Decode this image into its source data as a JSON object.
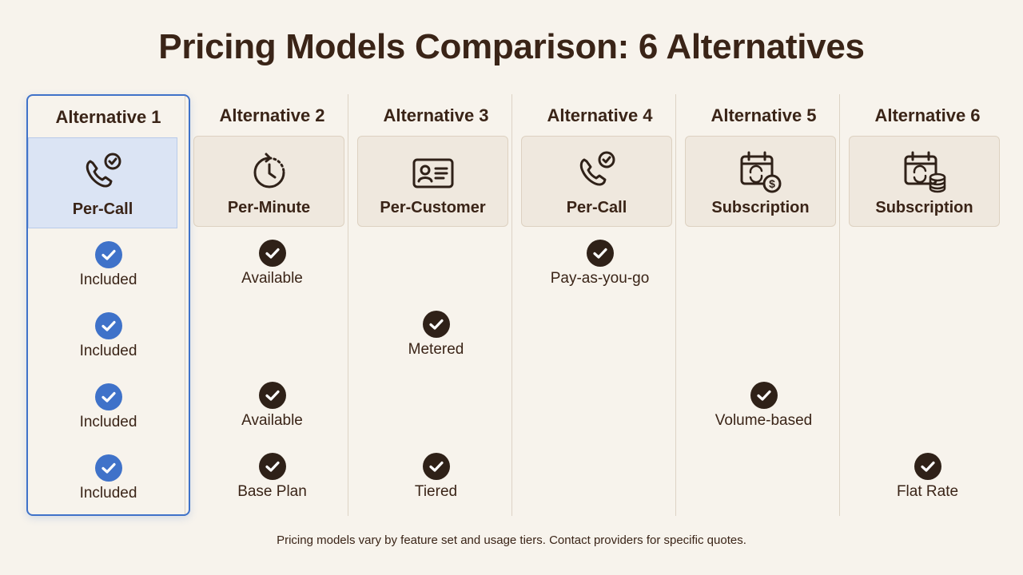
{
  "title": "Pricing Models Comparison: 6 Alternatives",
  "footnote": "Pricing models vary by feature set and usage tiers. Contact providers for specific quotes.",
  "colors": {
    "accent": "#3f72c9",
    "check_dark": "#2f2118",
    "background": "#f7f3ec"
  },
  "columns": [
    {
      "title": "Alternative 1",
      "model": "Per-Call",
      "icon": "phone-check-icon",
      "selected": true,
      "cells": [
        "Included",
        "Included",
        "Included",
        "Included"
      ]
    },
    {
      "title": "Alternative 2",
      "model": "Per-Minute",
      "icon": "clock-icon",
      "selected": false,
      "cells": [
        "Available",
        "",
        "Available",
        "Base Plan"
      ]
    },
    {
      "title": "Alternative 3",
      "model": "Per-Customer",
      "icon": "id-card-icon",
      "selected": false,
      "cells": [
        "",
        "Metered",
        "",
        "Tiered"
      ]
    },
    {
      "title": "Alternative 4",
      "model": "Per-Call",
      "icon": "phone-check-icon",
      "selected": false,
      "cells": [
        "Pay-as-you-go",
        "",
        "",
        ""
      ]
    },
    {
      "title": "Alternative 5",
      "model": "Subscription",
      "icon": "calendar-dollar-icon",
      "selected": false,
      "cells": [
        "",
        "",
        "Volume-based",
        ""
      ]
    },
    {
      "title": "Alternative 6",
      "model": "Subscription",
      "icon": "calendar-coins-icon",
      "selected": false,
      "cells": [
        "",
        "",
        "",
        "Flat Rate"
      ]
    }
  ]
}
